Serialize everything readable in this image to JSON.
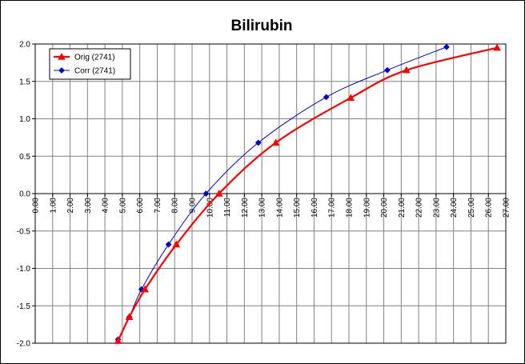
{
  "chart_data": {
    "type": "line",
    "title": "Bilirubin",
    "xlabel": "",
    "ylabel": "",
    "xlim": [
      0,
      27
    ],
    "ylim": [
      -2.0,
      2.0
    ],
    "x_ticks": [
      0,
      1,
      2,
      3,
      4,
      5,
      6,
      7,
      8,
      9,
      10,
      11,
      12,
      13,
      14,
      15,
      16,
      17,
      18,
      19,
      20,
      21,
      22,
      23,
      24,
      25,
      26,
      27
    ],
    "x_tick_labels": [
      "0.00",
      "1.00",
      "2.00",
      "3.00",
      "4.00",
      "5.00",
      "6.00",
      "7.00",
      "8.00",
      "9.00",
      "10.00",
      "11.00",
      "12.00",
      "13.00",
      "14.00",
      "15.00",
      "16.00",
      "17.00",
      "18.00",
      "19.00",
      "20.00",
      "21.00",
      "22.00",
      "23.00",
      "24.00",
      "25.00",
      "26.00",
      "27.00"
    ],
    "y_ticks": [
      2.0,
      1.5,
      1.0,
      0.5,
      0.0,
      -0.5,
      -1.0,
      -1.5,
      -2.0
    ],
    "y_tick_labels": [
      "2.0",
      "1.5",
      "1.0",
      "0.5",
      "0.0",
      "-0.5",
      "-1.0",
      "-1.5",
      "-2.0"
    ],
    "grid": true,
    "legend_position": "top-left",
    "series": [
      {
        "name": "Orig (2741)",
        "color": "#ff0000",
        "marker": "triangle",
        "x": [
          4.75,
          5.4,
          6.3,
          8.1,
          10.55,
          13.8,
          18.1,
          21.3,
          26.5
        ],
        "y": [
          -1.97,
          -1.65,
          -1.28,
          -0.68,
          0.0,
          0.68,
          1.28,
          1.65,
          1.95
        ]
      },
      {
        "name": "Corr (2741)",
        "color": "#0000cc",
        "marker": "diamond",
        "x": [
          4.75,
          5.4,
          6.1,
          7.65,
          9.8,
          12.8,
          16.7,
          20.2,
          23.6
        ],
        "y": [
          -1.95,
          -1.65,
          -1.28,
          -0.68,
          0.0,
          0.68,
          1.29,
          1.65,
          1.96
        ]
      }
    ]
  }
}
